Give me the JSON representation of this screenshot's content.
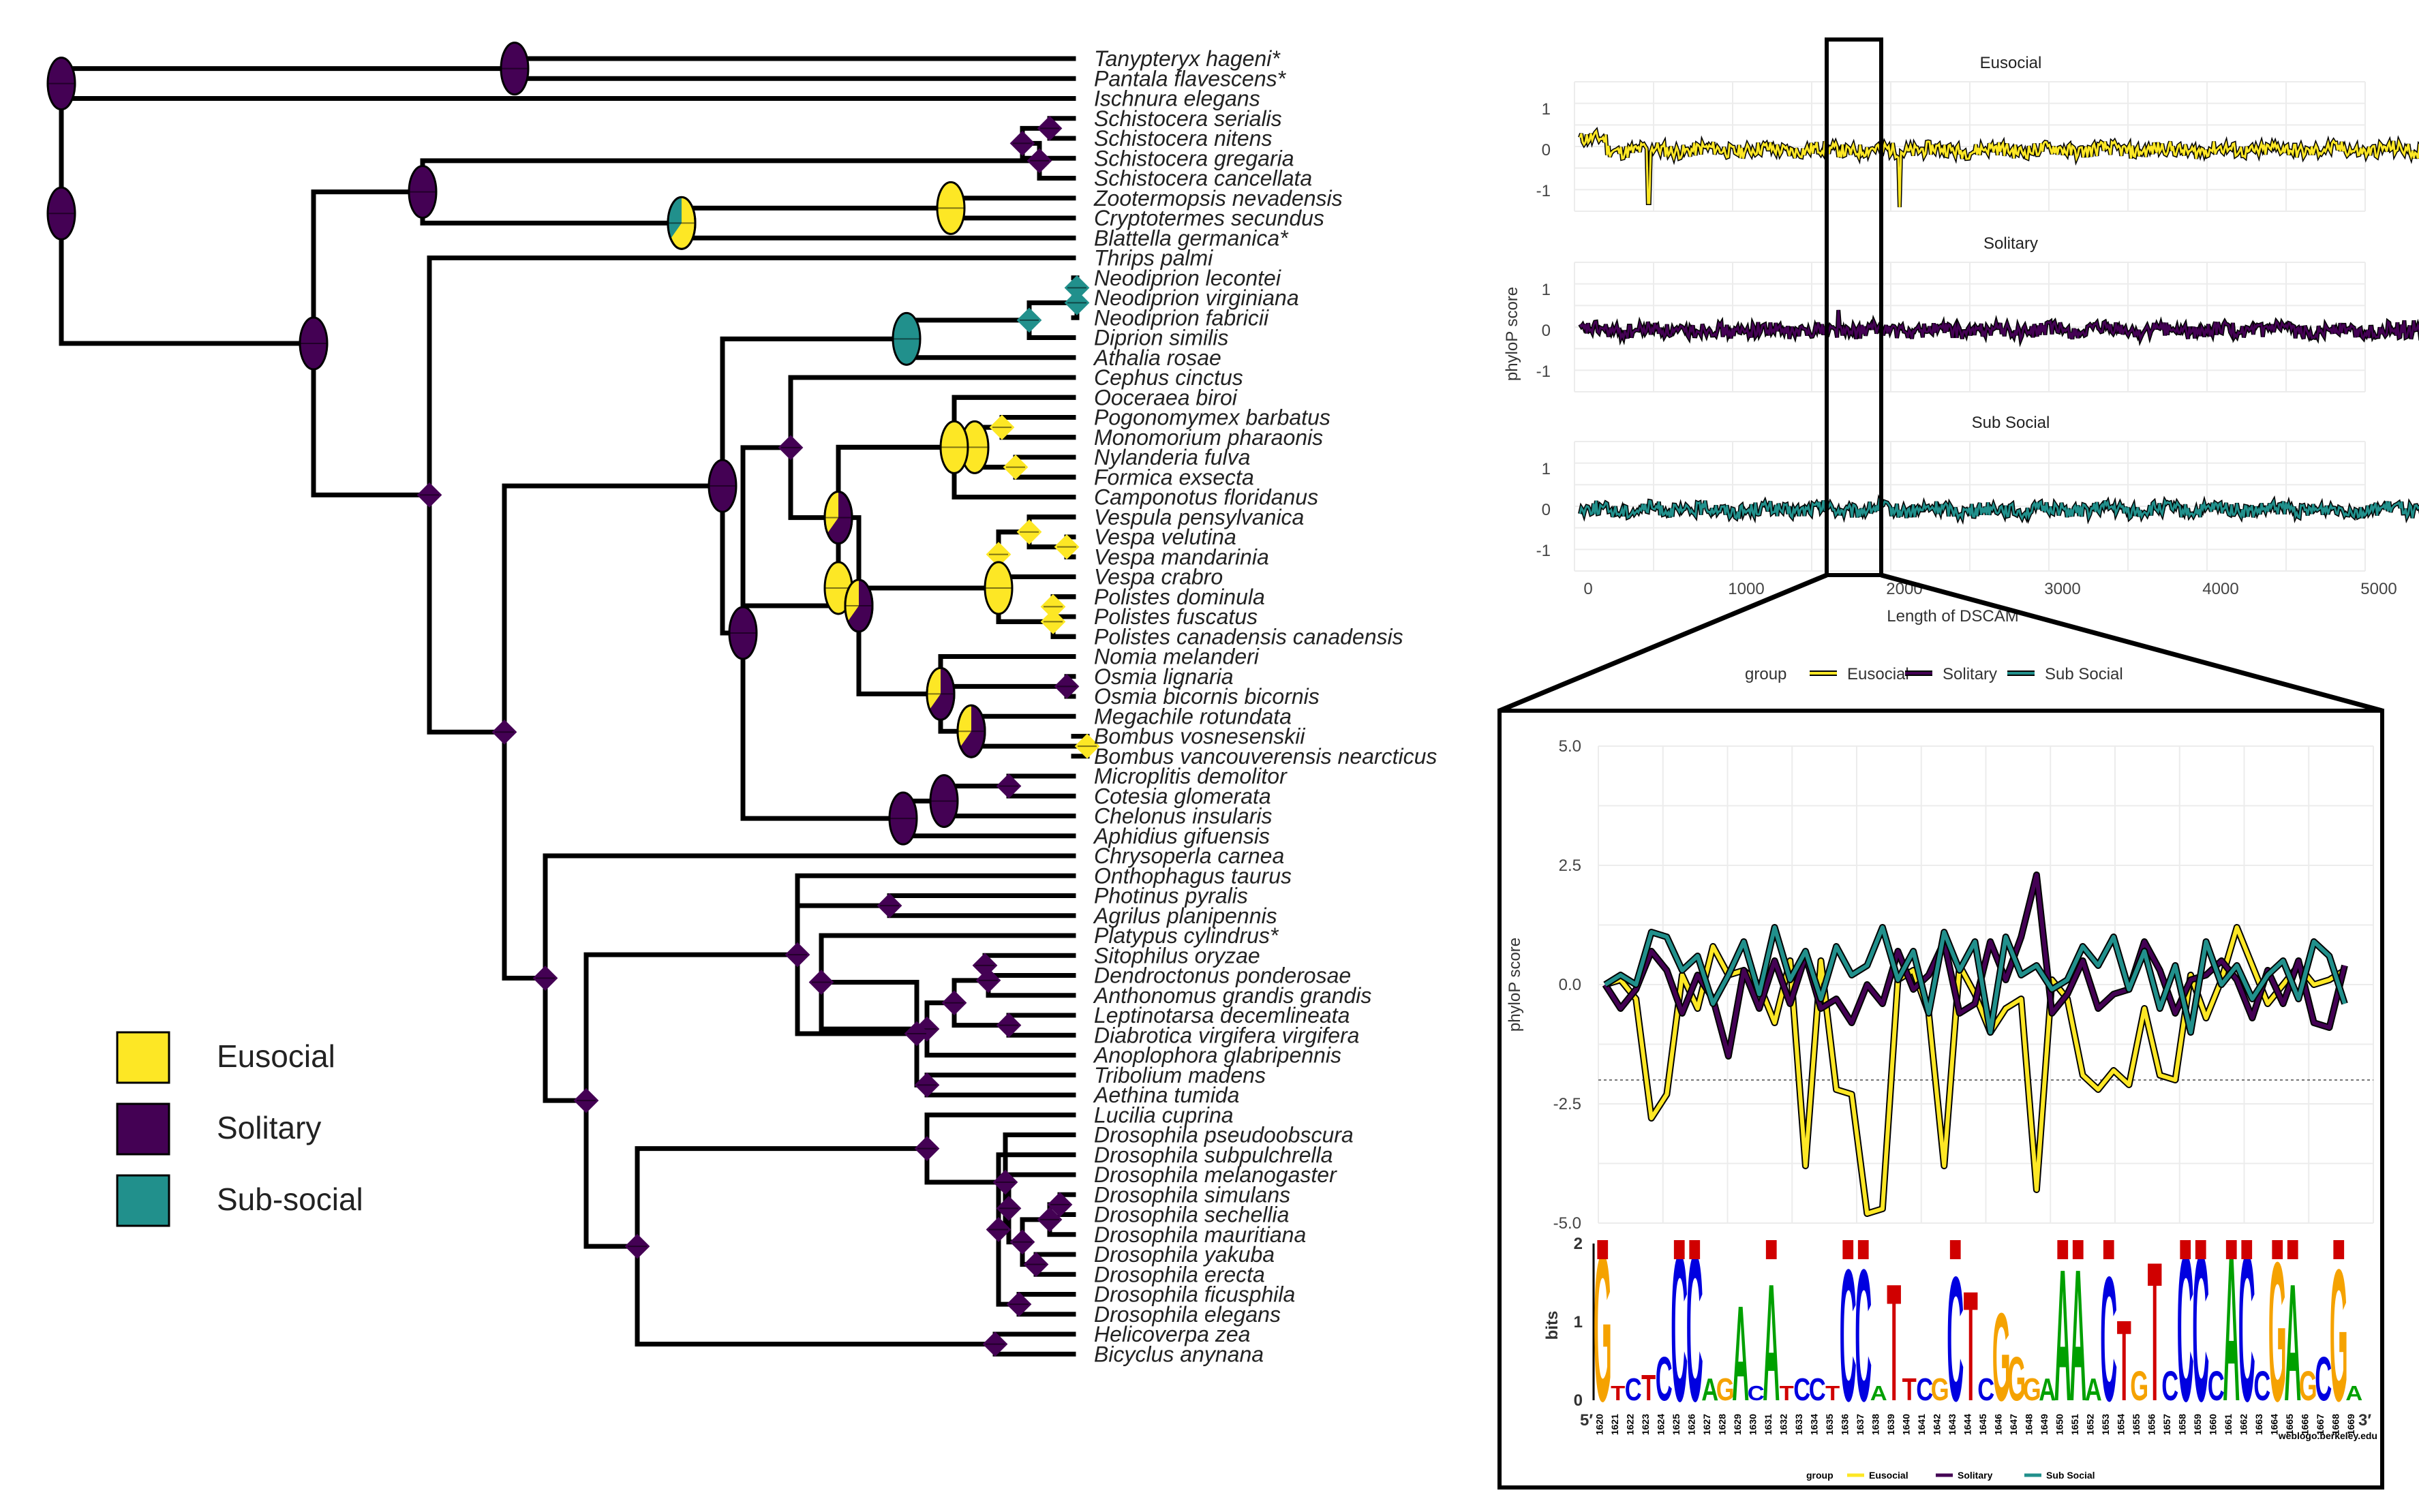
{
  "colors": {
    "eusocial": "#FDE725",
    "solitary": "#440154",
    "subsocial": "#21908C",
    "branch": "#000000"
  },
  "legend": [
    {
      "label": "Eusocial",
      "key": "eusocial"
    },
    {
      "label": "Solitary",
      "key": "solitary"
    },
    {
      "label": "Sub-social",
      "key": "subsocial"
    }
  ],
  "tips": [
    "Tanypteryx hageni*",
    "Pantala flavescens*",
    "Ischnura elegans",
    "Schistocera serialis",
    "Schistocera nitens",
    "Schistocera gregaria",
    "Schistocera cancellata",
    "Zootermopsis nevadensis",
    "Cryptotermes secundus",
    "Blattella germanica*",
    "Thrips palmi",
    "Neodiprion lecontei",
    "Neodiprion virginiana",
    "Neodiprion fabricii",
    "Diprion similis",
    "Athalia rosae",
    "Cephus cinctus",
    "Ooceraea biroi",
    "Pogonomymex barbatus",
    "Monomorium pharaonis",
    "Nylanderia fulva",
    "Formica exsecta",
    "Camponotus floridanus",
    "Vespula pensylvanica",
    "Vespa velutina",
    "Vespa mandarinia",
    "Vespa crabro",
    "Polistes dominula",
    "Polistes fuscatus",
    "Polistes canadensis canadensis",
    "Nomia melanderi",
    "Osmia lignaria",
    "Osmia bicornis bicornis",
    "Megachile rotundata",
    "Bombus vosnesenskii",
    "Bombus vancouverensis nearcticus",
    "Microplitis demolitor",
    "Cotesia glomerata",
    "Chelonus insularis",
    "Aphidius gifuensis",
    "Chrysoperla carnea",
    "Onthophagus taurus",
    "Photinus pyralis",
    "Agrilus planipennis",
    "Platypus cylindrus*",
    "Sitophilus oryzae",
    "Dendroctonus ponderosae",
    "Anthonomus grandis grandis",
    "Leptinotarsa decemlineata",
    "Diabrotica virgifera virgifera",
    "Anoplophora glabripennis",
    "Tribolium madens",
    "Aethina tumida",
    "Lucilia cuprina",
    "Drosophila pseudoobscura",
    "Drosophila subpulchrella",
    "Drosophila melanogaster",
    "Drosophila simulans",
    "Drosophila sechellia",
    "Drosophila mauritiana",
    "Drosophila yakuba",
    "Drosophila erecta",
    "Drosophila ficusphila",
    "Drosophila elegans",
    "Helicoverpa zea",
    "Bicyclus anynana"
  ],
  "top_chart": {
    "facets": [
      "Eusocial",
      "Solitary",
      "Sub Social"
    ],
    "y_ticks": [
      "1",
      "0",
      "-1"
    ],
    "x_ticks": [
      "0",
      "1000",
      "2000",
      "3000",
      "4000",
      "5000"
    ],
    "xlabel": "Length of DSCAM",
    "ylabel": "phyloP score",
    "xlim": [
      0,
      5000
    ]
  },
  "bottom_chart": {
    "legend_title": "group",
    "groups": [
      "Eusocial",
      "Solitary",
      "Sub Social"
    ],
    "ylabel": "phyloP score",
    "y_ticks": [
      "5.0",
      "2.5",
      "0.0",
      "-2.5",
      "-5.0"
    ],
    "ylim": [
      -5.0,
      5.0
    ],
    "threshold": -2.0
  },
  "chart_data": {
    "type": "line",
    "x": [
      1620,
      1621,
      1622,
      1623,
      1624,
      1625,
      1626,
      1627,
      1628,
      1629,
      1630,
      1631,
      1632,
      1633,
      1634,
      1635,
      1636,
      1637,
      1638,
      1639,
      1640,
      1641,
      1642,
      1643,
      1644,
      1645,
      1646,
      1647,
      1648,
      1649,
      1650,
      1651,
      1652,
      1653,
      1654,
      1655,
      1656,
      1657,
      1658,
      1659,
      1660,
      1661,
      1662,
      1663,
      1664,
      1665,
      1666,
      1667,
      1668
    ],
    "series": [
      {
        "name": "Eusocial",
        "values": [
          0.0,
          0.1,
          -0.3,
          -2.8,
          -2.3,
          0.2,
          -0.5,
          0.8,
          0.2,
          0.3,
          0.0,
          -0.8,
          0.5,
          -3.8,
          0.5,
          -2.2,
          -2.3,
          -4.8,
          -4.7,
          0.1,
          0.3,
          -0.6,
          -3.8,
          0.4,
          -0.2,
          -1.0,
          -0.5,
          -0.3,
          -4.3,
          0.1,
          -0.3,
          -1.9,
          -2.2,
          -1.8,
          -2.1,
          -0.5,
          -1.9,
          -2.0,
          0.2,
          -0.7,
          0.1,
          1.2,
          0.4,
          -0.4,
          0.0,
          0.4,
          0.0,
          0.1,
          0.3
        ]
      },
      {
        "name": "Solitary",
        "values": [
          0.0,
          -0.5,
          -0.1,
          0.7,
          0.3,
          -0.6,
          0.2,
          -0.3,
          -1.5,
          0.3,
          -0.5,
          0.5,
          -0.4,
          0.6,
          -0.5,
          -0.3,
          -0.8,
          0.0,
          -0.4,
          0.7,
          -0.1,
          0.2,
          0.9,
          -0.6,
          -0.4,
          0.9,
          0.1,
          1.0,
          2.3,
          -0.6,
          -0.2,
          0.5,
          -0.5,
          -0.2,
          -0.1,
          0.9,
          0.3,
          -0.6,
          0.1,
          0.2,
          0.5,
          0.1,
          -0.7,
          0.3,
          -0.4,
          0.5,
          -0.8,
          -0.9,
          0.4
        ]
      },
      {
        "name": "Sub Social",
        "values": [
          0.0,
          0.2,
          0.0,
          1.1,
          1.0,
          0.3,
          0.6,
          -0.4,
          0.2,
          0.9,
          -0.2,
          1.2,
          0.1,
          0.7,
          -0.3,
          0.8,
          0.2,
          0.4,
          1.2,
          0.1,
          0.7,
          -0.6,
          1.1,
          0.3,
          0.9,
          -1.0,
          1.0,
          0.2,
          0.4,
          -0.1,
          0.1,
          0.8,
          0.4,
          1.0,
          -0.1,
          0.7,
          -0.5,
          0.4,
          -1.0,
          0.9,
          0.0,
          0.4,
          -0.3,
          0.2,
          0.5,
          -0.3,
          0.9,
          0.6,
          -0.4
        ]
      }
    ],
    "xlabel": "",
    "ylabel": "phyloP score",
    "ylim": [
      -5.0,
      5.0
    ]
  },
  "logo": {
    "ylabel": "bits",
    "y_ticks": [
      "2",
      "1",
      "0"
    ],
    "prime5": "5′",
    "prime3": "3′",
    "credit": "weblogo.berkeley.edu",
    "positions": [
      "1620",
      "1621",
      "1622",
      "1623",
      "1624",
      "1625",
      "1626",
      "1627",
      "1628",
      "1629",
      "1630",
      "1631",
      "1632",
      "1633",
      "1634",
      "1635",
      "1636",
      "1637",
      "1638",
      "1639",
      "1640",
      "1641",
      "1642",
      "1643",
      "1644",
      "1645",
      "1646",
      "1647",
      "1648",
      "1649",
      "1650",
      "1651",
      "1652",
      "1653",
      "1654",
      "1655",
      "1656",
      "1657",
      "1658",
      "1659",
      "1660",
      "1661",
      "1662",
      "1663",
      "1664",
      "1665",
      "1666",
      "1667",
      "1668",
      "1669"
    ],
    "letters": [
      "G",
      "T",
      "C",
      "C",
      "CC",
      "C",
      "A",
      "A",
      "T",
      "C",
      "T",
      "C",
      "C",
      "T",
      "T",
      "C",
      "G",
      "T",
      "CG",
      "G",
      "G",
      "A",
      "A",
      "G",
      "T",
      "C",
      "C",
      "C",
      "C",
      "A",
      "G"
    ]
  }
}
